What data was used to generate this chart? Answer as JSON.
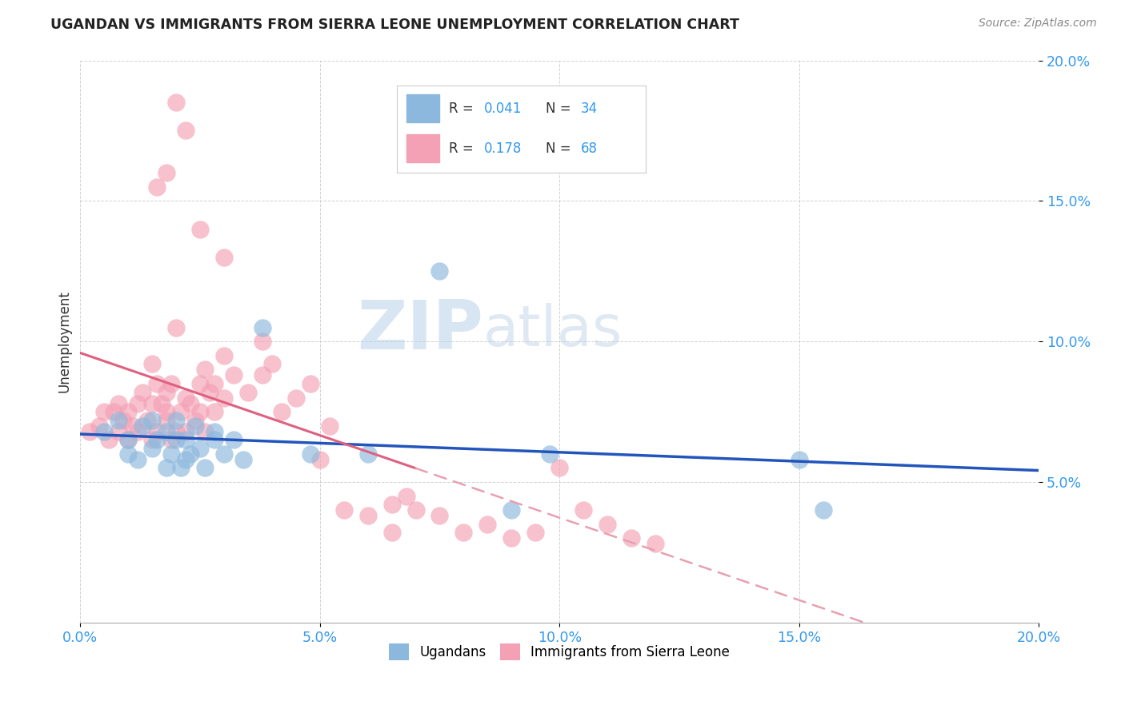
{
  "title": "UGANDAN VS IMMIGRANTS FROM SIERRA LEONE UNEMPLOYMENT CORRELATION CHART",
  "source_text": "Source: ZipAtlas.com",
  "ylabel": "Unemployment",
  "xlim": [
    0.0,
    0.2
  ],
  "ylim": [
    0.0,
    0.2
  ],
  "xticks": [
    0.0,
    0.05,
    0.1,
    0.15,
    0.2
  ],
  "yticks": [
    0.05,
    0.1,
    0.15,
    0.2
  ],
  "xticklabels": [
    "0.0%",
    "5.0%",
    "10.0%",
    "15.0%",
    "20.0%"
  ],
  "yticklabels": [
    "5.0%",
    "10.0%",
    "15.0%",
    "20.0%"
  ],
  "blue_color": "#8BB8DC",
  "pink_color": "#F4A0B5",
  "blue_line_color": "#2255BB",
  "pink_line_color": "#E06080",
  "pink_dash_color": "#E8A0B0",
  "label1": "Ugandans",
  "label2": "Immigrants from Sierra Leone",
  "watermark_zip": "ZIP",
  "watermark_atlas": "atlas",
  "blue_scatter_x": [
    0.005,
    0.008,
    0.01,
    0.01,
    0.012,
    0.013,
    0.015,
    0.015,
    0.016,
    0.018,
    0.018,
    0.019,
    0.02,
    0.02,
    0.021,
    0.022,
    0.022,
    0.023,
    0.024,
    0.025,
    0.026,
    0.028,
    0.028,
    0.03,
    0.032,
    0.034,
    0.038,
    0.048,
    0.06,
    0.075,
    0.09,
    0.098,
    0.15,
    0.155
  ],
  "blue_scatter_y": [
    0.068,
    0.072,
    0.06,
    0.065,
    0.058,
    0.07,
    0.062,
    0.072,
    0.065,
    0.055,
    0.068,
    0.06,
    0.065,
    0.072,
    0.055,
    0.058,
    0.065,
    0.06,
    0.07,
    0.062,
    0.055,
    0.065,
    0.068,
    0.06,
    0.065,
    0.058,
    0.105,
    0.06,
    0.06,
    0.125,
    0.04,
    0.06,
    0.058,
    0.04
  ],
  "pink_scatter_x": [
    0.002,
    0.004,
    0.005,
    0.006,
    0.007,
    0.008,
    0.008,
    0.009,
    0.01,
    0.01,
    0.011,
    0.012,
    0.012,
    0.013,
    0.014,
    0.015,
    0.015,
    0.015,
    0.016,
    0.016,
    0.017,
    0.018,
    0.018,
    0.018,
    0.019,
    0.019,
    0.02,
    0.02,
    0.021,
    0.022,
    0.022,
    0.023,
    0.024,
    0.025,
    0.025,
    0.026,
    0.026,
    0.027,
    0.028,
    0.028,
    0.03,
    0.03,
    0.032,
    0.035,
    0.038,
    0.038,
    0.04,
    0.042,
    0.045,
    0.048,
    0.05,
    0.052,
    0.055,
    0.06,
    0.065,
    0.065,
    0.068,
    0.07,
    0.075,
    0.08,
    0.085,
    0.09,
    0.095,
    0.1,
    0.105,
    0.11,
    0.115,
    0.12
  ],
  "pink_scatter_y": [
    0.068,
    0.07,
    0.075,
    0.065,
    0.075,
    0.078,
    0.068,
    0.072,
    0.065,
    0.075,
    0.07,
    0.068,
    0.078,
    0.082,
    0.072,
    0.078,
    0.065,
    0.092,
    0.068,
    0.085,
    0.078,
    0.072,
    0.075,
    0.082,
    0.065,
    0.085,
    0.068,
    0.105,
    0.075,
    0.068,
    0.08,
    0.078,
    0.072,
    0.085,
    0.075,
    0.09,
    0.068,
    0.082,
    0.075,
    0.085,
    0.08,
    0.095,
    0.088,
    0.082,
    0.088,
    0.1,
    0.092,
    0.075,
    0.08,
    0.085,
    0.058,
    0.07,
    0.04,
    0.038,
    0.032,
    0.042,
    0.045,
    0.04,
    0.038,
    0.032,
    0.035,
    0.03,
    0.032,
    0.055,
    0.04,
    0.035,
    0.03,
    0.028
  ],
  "pink_outliers_x": [
    0.016,
    0.018,
    0.02,
    0.022,
    0.025,
    0.03
  ],
  "pink_outliers_y": [
    0.155,
    0.16,
    0.185,
    0.175,
    0.14,
    0.13
  ]
}
